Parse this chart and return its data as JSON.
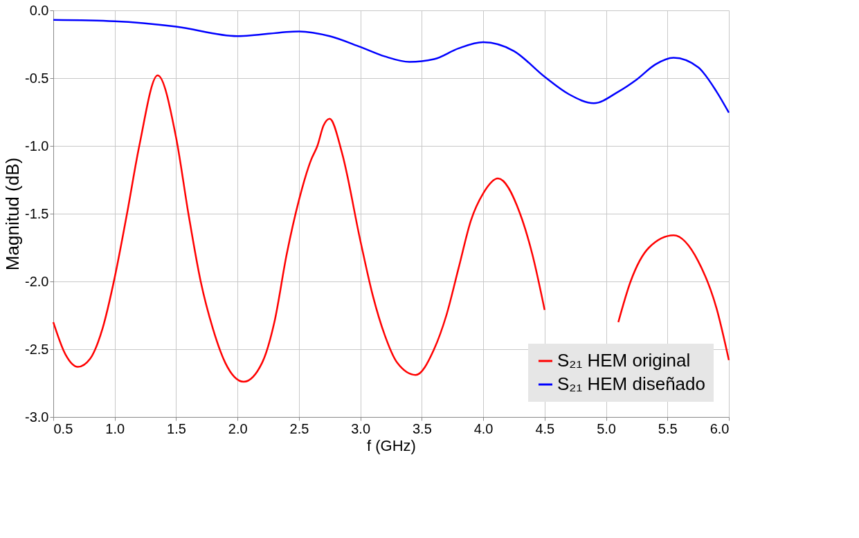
{
  "chart_data": {
    "type": "line",
    "xlabel": "f (GHz)",
    "ylabel": "Magnitud (dB)",
    "xlim": [
      0.5,
      6.0
    ],
    "xticks": [
      {
        "value": 0.5,
        "label": "0.5"
      },
      {
        "value": 1.0,
        "label": "1.0"
      },
      {
        "value": 1.5,
        "label": "1.5"
      },
      {
        "value": 2.0,
        "label": "2.0"
      },
      {
        "value": 2.5,
        "label": "2.5"
      },
      {
        "value": 3.0,
        "label": "3.0"
      },
      {
        "value": 3.5,
        "label": "3.5"
      },
      {
        "value": 4.0,
        "label": "4.0"
      },
      {
        "value": 4.5,
        "label": "4.5"
      },
      {
        "value": 5.0,
        "label": "5.0"
      },
      {
        "value": 5.5,
        "label": "5.5"
      },
      {
        "value": 6.0,
        "label": "6.0"
      }
    ],
    "ylim": [
      -3.0,
      0.0
    ],
    "yticks": [
      {
        "value": -3.0,
        "label": "-3.0"
      },
      {
        "value": -2.5,
        "label": "-2.5"
      },
      {
        "value": -2.0,
        "label": "-2.0"
      },
      {
        "value": -1.5,
        "label": "-1.5"
      },
      {
        "value": -1.0,
        "label": "-1.0"
      },
      {
        "value": -0.5,
        "label": "-0.5"
      },
      {
        "value": 0.0,
        "label": "0.0"
      }
    ],
    "grid": true,
    "legend": "bottom right",
    "line_style": "solid",
    "marker": "none",
    "series": [
      {
        "name": "S₂₁ HEM original",
        "color": "#ff0000",
        "x": [
          0.5,
          0.6,
          0.7,
          0.8,
          0.9,
          1.0,
          1.1,
          1.2,
          1.35,
          1.5,
          1.6,
          1.7,
          1.8,
          1.9,
          2.05,
          2.2,
          2.3,
          2.4,
          2.5,
          2.6,
          2.65,
          2.7,
          2.75,
          2.85,
          3.0,
          3.1,
          3.2,
          3.3,
          3.45,
          3.6,
          3.7,
          3.8,
          3.9,
          4.0,
          4.12,
          4.3,
          4.4,
          4.5,
          4.8,
          5.1,
          5.2,
          5.35,
          5.55,
          5.75,
          5.9,
          6.0
        ],
        "values": [
          -2.3,
          -2.54,
          -2.63,
          -2.57,
          -2.35,
          -1.97,
          -1.5,
          -1.0,
          -0.48,
          -0.94,
          -1.5,
          -2.0,
          -2.35,
          -2.6,
          -2.74,
          -2.6,
          -2.3,
          -1.8,
          -1.4,
          -1.1,
          -1.0,
          -0.85,
          -0.8,
          -1.05,
          -1.7,
          -2.1,
          -2.4,
          -2.6,
          -2.69,
          -2.5,
          -2.25,
          -1.9,
          -1.55,
          -1.35,
          -1.24,
          -1.5,
          -1.8,
          -2.21,
          null,
          -2.3,
          -2.0,
          -1.75,
          -1.66,
          -1.85,
          -2.2,
          -2.58
        ]
      },
      {
        "name": "S₂₁ HEM diseñado",
        "color": "#0000ff",
        "x": [
          0.5,
          1.0,
          1.5,
          2.0,
          2.5,
          2.75,
          3.0,
          3.2,
          3.4,
          3.6,
          3.8,
          4.0,
          4.25,
          4.5,
          4.7,
          4.9,
          5.1,
          5.25,
          5.4,
          5.55,
          5.75,
          5.9,
          6.0
        ],
        "values": [
          -0.07,
          -0.08,
          -0.12,
          -0.19,
          -0.155,
          -0.19,
          -0.27,
          -0.34,
          -0.38,
          -0.36,
          -0.28,
          -0.235,
          -0.3,
          -0.49,
          -0.62,
          -0.685,
          -0.6,
          -0.51,
          -0.4,
          -0.35,
          -0.42,
          -0.6,
          -0.755
        ]
      }
    ]
  }
}
